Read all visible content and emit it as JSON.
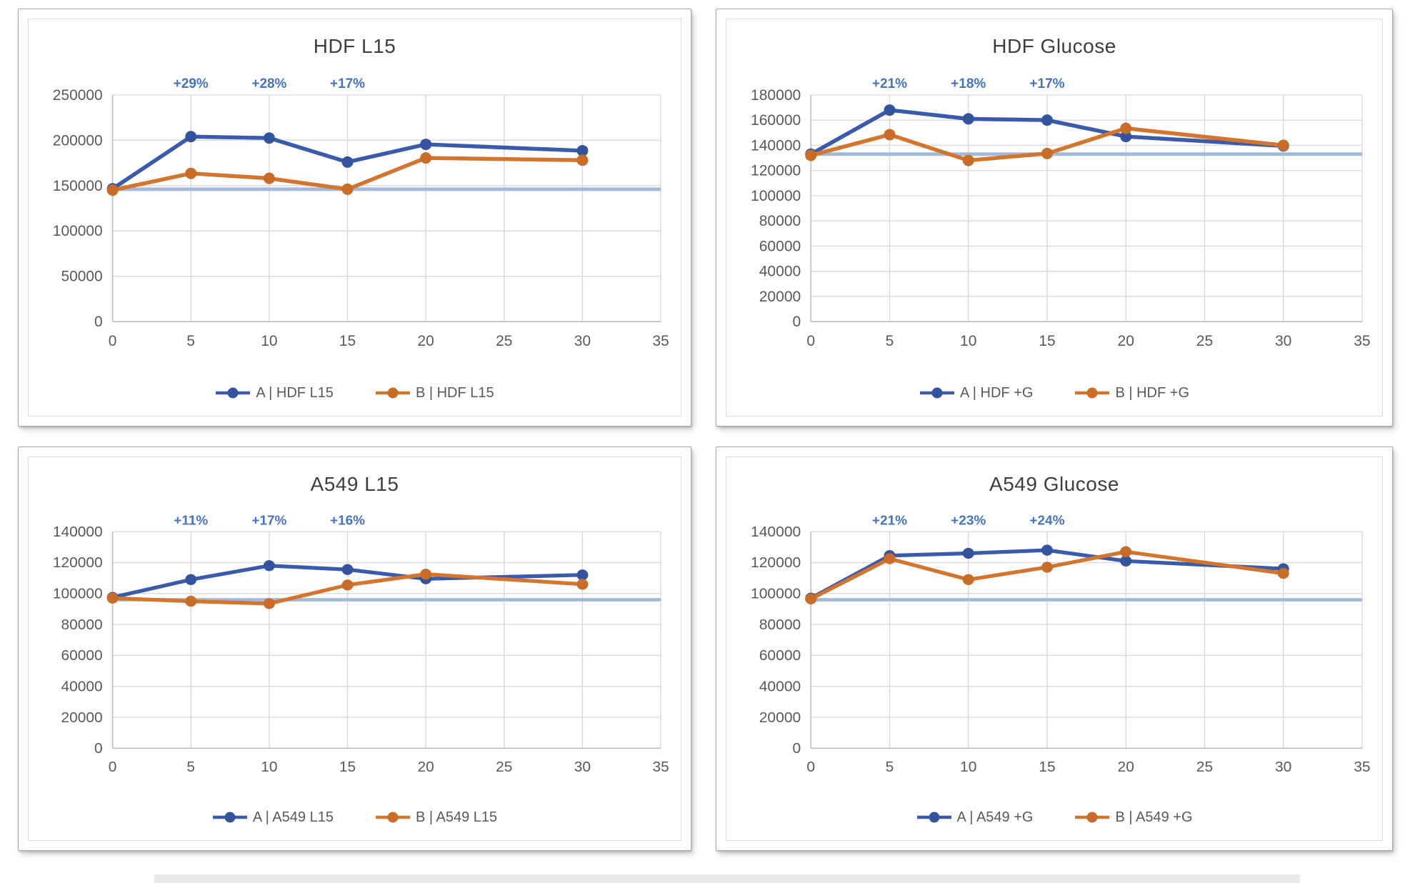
{
  "colors": {
    "series_a": "#3A5BAB",
    "series_b": "#D4752E",
    "marker_a": "#33539F",
    "marker_b": "#C96C28",
    "baseline": "#A3B9DC",
    "gridline": "#D9D9D9",
    "axis_line": "#BFBFBF",
    "tick_text": "#595959",
    "title_text": "#3E3E3E",
    "annotation_text": "#4472C4"
  },
  "chart_data": [
    {
      "type": "line",
      "title": "HDF L15",
      "x": [
        0,
        5,
        10,
        15,
        20,
        30
      ],
      "x_ticks": [
        0,
        5,
        10,
        15,
        20,
        25,
        30,
        35
      ],
      "xlim": [
        0,
        35
      ],
      "ylim": [
        0,
        250000
      ],
      "y_tick_step": 50000,
      "grid": true,
      "legend_position": "bottom",
      "baseline_value": 146000,
      "annotations": [
        {
          "x": 5,
          "label": "+29%"
        },
        {
          "x": 10,
          "label": "+28%"
        },
        {
          "x": 15,
          "label": "+17%"
        }
      ],
      "series": [
        {
          "name": "A | HDF L15",
          "color_key": "series_a",
          "values": [
            146500,
            204000,
            202500,
            176000,
            195500,
            188500
          ]
        },
        {
          "name": "B | HDF L15",
          "color_key": "series_b",
          "values": [
            145000,
            163500,
            158000,
            146000,
            180500,
            178000
          ]
        }
      ]
    },
    {
      "type": "line",
      "title": "HDF Glucose",
      "x": [
        0,
        5,
        10,
        15,
        20,
        30
      ],
      "x_ticks": [
        0,
        5,
        10,
        15,
        20,
        25,
        30,
        35
      ],
      "xlim": [
        0,
        35
      ],
      "ylim": [
        0,
        180000
      ],
      "y_tick_step": 20000,
      "grid": true,
      "legend_position": "bottom",
      "baseline_value": 133000,
      "annotations": [
        {
          "x": 5,
          "label": "+21%"
        },
        {
          "x": 10,
          "label": "+18%"
        },
        {
          "x": 15,
          "label": "+17%"
        }
      ],
      "series": [
        {
          "name": "A | HDF +G",
          "color_key": "series_a",
          "values": [
            133000,
            168000,
            161000,
            160000,
            147000,
            139500
          ]
        },
        {
          "name": "B | HDF +G",
          "color_key": "series_b",
          "values": [
            132000,
            148500,
            128000,
            133500,
            153500,
            140000
          ]
        }
      ]
    },
    {
      "type": "line",
      "title": "A549 L15",
      "x": [
        0,
        5,
        10,
        15,
        20,
        30
      ],
      "x_ticks": [
        0,
        5,
        10,
        15,
        20,
        25,
        30,
        35
      ],
      "xlim": [
        0,
        35
      ],
      "ylim": [
        0,
        140000
      ],
      "y_tick_step": 20000,
      "grid": true,
      "legend_position": "bottom",
      "baseline_value": 96000,
      "annotations": [
        {
          "x": 5,
          "label": "+11%"
        },
        {
          "x": 10,
          "label": "+17%"
        },
        {
          "x": 15,
          "label": "+16%"
        }
      ],
      "series": [
        {
          "name": "A | A549 L15",
          "color_key": "series_a",
          "values": [
            97500,
            109000,
            118000,
            115500,
            109500,
            112000
          ]
        },
        {
          "name": "B | A549 L15",
          "color_key": "series_b",
          "values": [
            97000,
            95000,
            93500,
            105500,
            112500,
            106000
          ]
        }
      ]
    },
    {
      "type": "line",
      "title": "A549 Glucose",
      "x": [
        0,
        5,
        10,
        15,
        20,
        30
      ],
      "x_ticks": [
        0,
        5,
        10,
        15,
        20,
        25,
        30,
        35
      ],
      "xlim": [
        0,
        35
      ],
      "ylim": [
        0,
        140000
      ],
      "y_tick_step": 20000,
      "grid": true,
      "legend_position": "bottom",
      "baseline_value": 96000,
      "annotations": [
        {
          "x": 5,
          "label": "+21%"
        },
        {
          "x": 10,
          "label": "+23%"
        },
        {
          "x": 15,
          "label": "+24%"
        }
      ],
      "series": [
        {
          "name": "A | A549 +G",
          "color_key": "series_a",
          "values": [
            97000,
            124500,
            126000,
            128000,
            121000,
            116000
          ]
        },
        {
          "name": "B | A549 +G",
          "color_key": "series_b",
          "values": [
            96500,
            122500,
            109000,
            117000,
            127000,
            113000
          ]
        }
      ]
    }
  ]
}
